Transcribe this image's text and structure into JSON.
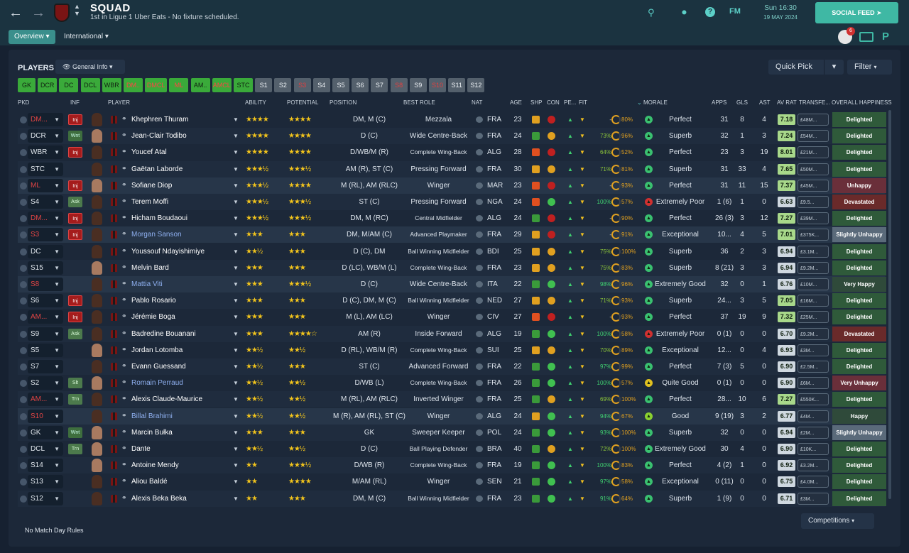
{
  "header": {
    "title": "SQUAD",
    "subtitle": "1st in Ligue 1 Uber Eats - No fixture scheduled.",
    "back_icon": "arrow-left-icon",
    "forward_icon": "arrow-right-icon",
    "time": "Sun 16:30",
    "date": "19 MAY 2024",
    "social_feed": "SOCIAL FEED",
    "fm_label": "FM",
    "notification_count": "6"
  },
  "tabs": {
    "overview": "Overview",
    "international": "International"
  },
  "toolbar": {
    "players_label": "PLAYERS",
    "view": "General Info",
    "quick_pick": "Quick Pick",
    "filter": "Filter"
  },
  "positions": [
    "GK",
    "DCR",
    "DC",
    "DCL",
    "WBR",
    "DM..",
    "DMCL",
    "ML",
    "AM..",
    "AMCL",
    "STC",
    "S1",
    "S2",
    "S3",
    "S4",
    "S5",
    "S6",
    "S7",
    "S8",
    "S9",
    "S10",
    "S11",
    "S12"
  ],
  "columns": {
    "pkd": "PKD",
    "inf": "INF",
    "player": "PLAYER",
    "ability": "ABILITY",
    "potential": "POTENTIAL",
    "position": "POSITION",
    "best_role": "BEST ROLE",
    "nat": "NAT",
    "age": "AGE",
    "shp": "SHP",
    "con": "CON",
    "pe": "PE...",
    "fit": "FIT",
    "morale": "MORALE",
    "apps": "APPS",
    "gls": "GLS",
    "ast": "AST",
    "av_rat": "AV RAT",
    "transfer": "TRANSFE...",
    "happiness": "OVERALL HAPPINESS"
  },
  "players": [
    {
      "pkd": "DM...",
      "inf": "Inj",
      "name": "Khephren Thuram",
      "ability": "★★★★",
      "potential": "★★★★",
      "position": "DM, M (C)",
      "role": "Mezzala",
      "nat": "FRA",
      "age": "23",
      "pct1": "-",
      "pct2": "80%",
      "morale": "Perfect",
      "apps": "31",
      "gls": "8",
      "ast": "4",
      "avr": "7.18",
      "tv": "£48M...",
      "hap": "Delighted"
    },
    {
      "pkd": "DCR",
      "inf": "Wnt",
      "name": "Jean-Clair Todibo",
      "ability": "★★★★",
      "potential": "★★★★",
      "position": "D (C)",
      "role": "Wide Centre-Back",
      "nat": "FRA",
      "age": "24",
      "pct1": "73%",
      "pct2": "96%",
      "morale": "Superb",
      "apps": "32",
      "gls": "1",
      "ast": "3",
      "avr": "7.24",
      "tv": "£54M...",
      "hap": "Delighted"
    },
    {
      "pkd": "WBR",
      "inf": "Inj",
      "name": "Youcef Atal",
      "ability": "★★★★",
      "potential": "★★★★",
      "position": "D/WB/M (R)",
      "role": "Complete Wing-Back",
      "nat": "ALG",
      "age": "28",
      "pct1": "64%",
      "pct2": "52%",
      "morale": "Perfect",
      "apps": "23",
      "gls": "3",
      "ast": "19",
      "avr": "8.01",
      "tv": "£21M...",
      "hap": "Delighted"
    },
    {
      "pkd": "STC",
      "inf": "",
      "name": "Gaëtan Laborde",
      "ability": "★★★½",
      "potential": "★★★½",
      "position": "AM (R), ST (C)",
      "role": "Pressing Forward",
      "nat": "FRA",
      "age": "30",
      "pct1": "71%",
      "pct2": "81%",
      "morale": "Superb",
      "apps": "31",
      "gls": "33",
      "ast": "4",
      "avr": "7.65",
      "tv": "£50M...",
      "hap": "Delighted"
    },
    {
      "pkd": "ML",
      "inf": "Inj",
      "name": "Sofiane Diop",
      "ability": "★★★½",
      "potential": "★★★★",
      "position": "M (RL), AM (RLC)",
      "role": "Winger",
      "nat": "MAR",
      "age": "23",
      "pct1": "-",
      "pct2": "93%",
      "morale": "Perfect",
      "apps": "31",
      "gls": "11",
      "ast": "15",
      "avr": "7.37",
      "tv": "£45M...",
      "hap": "Unhappy"
    },
    {
      "pkd": "S4",
      "inf": "Ask",
      "name": "Terem Moffi",
      "ability": "★★★½",
      "potential": "★★★½",
      "position": "ST (C)",
      "role": "Pressing Forward",
      "nat": "NGA",
      "age": "24",
      "pct1": "100%",
      "pct2": "57%",
      "morale": "Extremely Poor",
      "apps": "1 (6)",
      "gls": "1",
      "ast": "0",
      "avr": "6.63",
      "tv": "£9.5...",
      "hap": "Devastated"
    },
    {
      "pkd": "DM...",
      "inf": "Inj",
      "name": "Hicham Boudaoui",
      "ability": "★★★½",
      "potential": "★★★½",
      "position": "DM, M (RC)",
      "role": "Central Midfielder",
      "nat": "ALG",
      "age": "24",
      "pct1": "-",
      "pct2": "90%",
      "morale": "Perfect",
      "apps": "26 (3)",
      "gls": "3",
      "ast": "12",
      "avr": "7.27",
      "tv": "£39M...",
      "hap": "Delighted"
    },
    {
      "pkd": "S3",
      "inf": "Inj",
      "name": "Morgan Sanson",
      "ability": "★★★",
      "potential": "★★★",
      "position": "DM, M/AM (C)",
      "role": "Advanced Playmaker",
      "nat": "FRA",
      "age": "29",
      "pct1": "-",
      "pct2": "91%",
      "morale": "Exceptional",
      "apps": "10...",
      "gls": "4",
      "ast": "5",
      "avr": "7.01",
      "tv": "£375K...",
      "hap": "Slightly Unhappy"
    },
    {
      "pkd": "DC",
      "inf": "",
      "name": "Youssouf Ndayishimiye",
      "ability": "★★½",
      "potential": "★★★",
      "position": "D (C), DM",
      "role": "Ball Winning Midfielder",
      "nat": "BDI",
      "age": "25",
      "pct1": "75%",
      "pct2": "100%",
      "morale": "Superb",
      "apps": "36",
      "gls": "2",
      "ast": "3",
      "avr": "6.94",
      "tv": "£3.1M...",
      "hap": "Delighted"
    },
    {
      "pkd": "S15",
      "inf": "",
      "name": "Melvin Bard",
      "ability": "★★★",
      "potential": "★★★",
      "position": "D (LC), WB/M (L)",
      "role": "Complete Wing-Back",
      "nat": "FRA",
      "age": "23",
      "pct1": "75%",
      "pct2": "83%",
      "morale": "Superb",
      "apps": "8 (21)",
      "gls": "3",
      "ast": "3",
      "avr": "6.94",
      "tv": "£9.2M...",
      "hap": "Delighted"
    },
    {
      "pkd": "S8",
      "inf": "",
      "name": "Mattia Viti",
      "ability": "★★★",
      "potential": "★★★½",
      "position": "D (C)",
      "role": "Wide Centre-Back",
      "nat": "ITA",
      "age": "22",
      "pct1": "98%",
      "pct2": "96%",
      "morale": "Extremely Good",
      "apps": "32",
      "gls": "0",
      "ast": "1",
      "avr": "6.76",
      "tv": "£10M...",
      "hap": "Very Happy"
    },
    {
      "pkd": "S6",
      "inf": "Inj",
      "name": "Pablo Rosario",
      "ability": "★★★",
      "potential": "★★★",
      "position": "D (C), DM, M (C)",
      "role": "Ball Winning Midfielder",
      "nat": "NED",
      "age": "27",
      "pct1": "71%",
      "pct2": "93%",
      "morale": "Superb",
      "apps": "24...",
      "gls": "3",
      "ast": "5",
      "avr": "7.05",
      "tv": "£16M...",
      "hap": "Delighted"
    },
    {
      "pkd": "AM...",
      "inf": "Inj",
      "name": "Jérémie Boga",
      "ability": "★★★",
      "potential": "★★★",
      "position": "M (L), AM (LC)",
      "role": "Winger",
      "nat": "CIV",
      "age": "27",
      "pct1": "-",
      "pct2": "93%",
      "morale": "Perfect",
      "apps": "37",
      "gls": "19",
      "ast": "9",
      "avr": "7.32",
      "tv": "£25M...",
      "hap": "Delighted"
    },
    {
      "pkd": "S9",
      "inf": "Ask",
      "name": "Badredine Bouanani",
      "ability": "★★★",
      "potential": "★★★★☆",
      "position": "AM (R)",
      "role": "Inside Forward",
      "nat": "ALG",
      "age": "19",
      "pct1": "100%",
      "pct2": "58%",
      "morale": "Extremely Poor",
      "apps": "0 (1)",
      "gls": "0",
      "ast": "0",
      "avr": "6.70",
      "tv": "£9.2M...",
      "hap": "Devastated"
    },
    {
      "pkd": "S5",
      "inf": "",
      "name": "Jordan Lotomba",
      "ability": "★★½",
      "potential": "★★½",
      "position": "D (RL), WB/M (R)",
      "role": "Complete Wing-Back",
      "nat": "SUI",
      "age": "25",
      "pct1": "70%",
      "pct2": "89%",
      "morale": "Exceptional",
      "apps": "12...",
      "gls": "0",
      "ast": "4",
      "avr": "6.93",
      "tv": "£3M...",
      "hap": "Delighted"
    },
    {
      "pkd": "S7",
      "inf": "",
      "name": "Evann Guessand",
      "ability": "★★½",
      "potential": "★★★",
      "position": "ST (C)",
      "role": "Advanced Forward",
      "nat": "FRA",
      "age": "22",
      "pct1": "97%",
      "pct2": "99%",
      "morale": "Perfect",
      "apps": "7 (3)",
      "gls": "5",
      "ast": "0",
      "avr": "6.90",
      "tv": "£2.5M...",
      "hap": "Delighted"
    },
    {
      "pkd": "S2",
      "inf": "Slt",
      "name": "Romain Perraud",
      "ability": "★★½",
      "potential": "★★½",
      "position": "D/WB (L)",
      "role": "Complete Wing-Back",
      "nat": "FRA",
      "age": "26",
      "pct1": "100%",
      "pct2": "57%",
      "morale": "Quite Good",
      "apps": "0 (1)",
      "gls": "0",
      "ast": "0",
      "avr": "6.90",
      "tv": "£6M...",
      "hap": "Very Unhappy"
    },
    {
      "pkd": "AM...",
      "inf": "Trn",
      "name": "Alexis Claude-Maurice",
      "ability": "★★½",
      "potential": "★★½",
      "position": "M (RL), AM (RLC)",
      "role": "Inverted Winger",
      "nat": "FRA",
      "age": "25",
      "pct1": "69%",
      "pct2": "100%",
      "morale": "Perfect",
      "apps": "28...",
      "gls": "10",
      "ast": "6",
      "avr": "7.27",
      "tv": "£550K...",
      "hap": "Delighted"
    },
    {
      "pkd": "S10",
      "inf": "",
      "name": "Billal Brahimi",
      "ability": "★★½",
      "potential": "★★½",
      "position": "M (R), AM (RL), ST (C)",
      "role": "Winger",
      "nat": "ALG",
      "age": "24",
      "pct1": "94%",
      "pct2": "67%",
      "morale": "Good",
      "apps": "9 (19)",
      "gls": "3",
      "ast": "2",
      "avr": "6.77",
      "tv": "£4M...",
      "hap": "Happy"
    },
    {
      "pkd": "GK",
      "inf": "Wnt",
      "name": "Marcin Bułka",
      "ability": "★★★",
      "potential": "★★★",
      "position": "GK",
      "role": "Sweeper Keeper",
      "nat": "POL",
      "age": "24",
      "pct1": "93%",
      "pct2": "100%",
      "morale": "Superb",
      "apps": "32",
      "gls": "0",
      "ast": "0",
      "avr": "6.94",
      "tv": "£2M...",
      "hap": "Slightly Unhappy"
    },
    {
      "pkd": "DCL",
      "inf": "Trn",
      "name": "Dante",
      "ability": "★★½",
      "potential": "★★½",
      "position": "D (C)",
      "role": "Ball Playing Defender",
      "nat": "BRA",
      "age": "40",
      "pct1": "72%",
      "pct2": "100%",
      "morale": "Extremely Good",
      "apps": "30",
      "gls": "4",
      "ast": "0",
      "avr": "6.90",
      "tv": "£10K...",
      "hap": "Delighted"
    },
    {
      "pkd": "S14",
      "inf": "",
      "name": "Antoine Mendy",
      "ability": "★★",
      "potential": "★★★½",
      "position": "D/WB (R)",
      "role": "Complete Wing-Back",
      "nat": "FRA",
      "age": "19",
      "pct1": "100%",
      "pct2": "83%",
      "morale": "Perfect",
      "apps": "4 (2)",
      "gls": "1",
      "ast": "0",
      "avr": "6.92",
      "tv": "£3.2M...",
      "hap": "Delighted"
    },
    {
      "pkd": "S13",
      "inf": "",
      "name": "Aliou Baldé",
      "ability": "★★",
      "potential": "★★★★",
      "position": "M/AM (RL)",
      "role": "Winger",
      "nat": "SEN",
      "age": "21",
      "pct1": "97%",
      "pct2": "58%",
      "morale": "Exceptional",
      "apps": "0 (11)",
      "gls": "0",
      "ast": "0",
      "avr": "6.75",
      "tv": "£4.0M...",
      "hap": "Delighted"
    },
    {
      "pkd": "S12",
      "inf": "",
      "name": "Alexis Beka Beka",
      "ability": "★★",
      "potential": "★★★",
      "position": "DM, M (C)",
      "role": "Ball Winning Midfielder",
      "nat": "FRA",
      "age": "23",
      "pct1": "91%",
      "pct2": "64%",
      "morale": "Superb",
      "apps": "1 (9)",
      "gls": "0",
      "ast": "0",
      "avr": "6.71",
      "tv": "£3M...",
      "hap": "Delighted"
    }
  ],
  "footer": {
    "rules": "No Match Day Rules",
    "competitions": "Competitions"
  },
  "colors": {
    "accent": "#3fb8a4",
    "delighted": "#2f5a3a",
    "unhappy": "#6a2f3a",
    "devastated": "#6a2a2a",
    "very_happy": "#2f4a3a",
    "happy": "#2f4a3a",
    "slightly_unhappy": "#5a6a7a"
  }
}
